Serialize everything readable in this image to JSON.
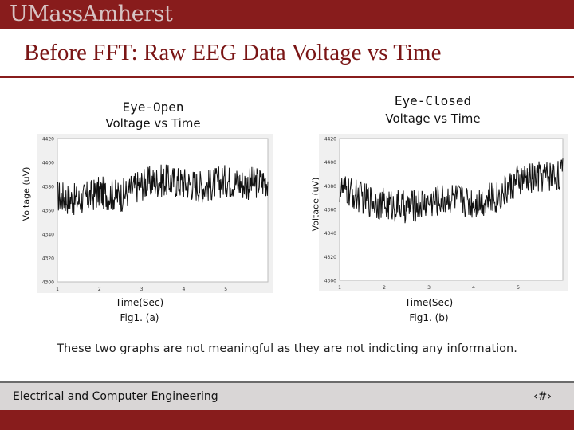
{
  "header": {
    "logo_text": "UMassAmherst",
    "brand_color": "#881c1c"
  },
  "slide": {
    "title": "Before FFT: Raw EEG Data Voltage vs Time",
    "summary": "These two graphs are not meaningful as they are not indicting any information."
  },
  "charts": {
    "left": {
      "title_line1": "Eye-Open",
      "title_line2": "Voltage vs Time",
      "ylabel": "Voltage (uV)",
      "xlabel": "Time(Sec)",
      "caption": "Fig1. (a)"
    },
    "right": {
      "title_line1": "Eye-Closed",
      "title_line2": "Voltage vs Time",
      "ylabel": "Voltage (uV)",
      "xlabel": "Time(Sec)",
      "caption": "Fig1. (b)"
    }
  },
  "chart_data": [
    {
      "type": "line",
      "xlim": [
        1,
        6
      ],
      "ylim": [
        4300,
        4420
      ],
      "xticks": [
        1,
        2,
        3,
        4,
        5
      ],
      "yticks": [
        4300,
        4320,
        4340,
        4360,
        4380,
        4400,
        4420
      ],
      "grid": false,
      "x": [
        1.0,
        1.5,
        2.0,
        2.5,
        3.0,
        3.5,
        4.0,
        4.5,
        5.0,
        5.5,
        6.0
      ],
      "y": [
        4372,
        4368,
        4375,
        4372,
        4382,
        4385,
        4383,
        4380,
        4385,
        4382,
        4385
      ],
      "series_color": "#111111"
    },
    {
      "type": "line",
      "xlim": [
        1,
        6
      ],
      "ylim": [
        4300,
        4420
      ],
      "xticks": [
        1,
        2,
        3,
        4,
        5
      ],
      "yticks": [
        4300,
        4320,
        4340,
        4360,
        4380,
        4400,
        4420
      ],
      "grid": false,
      "x": [
        1.0,
        1.5,
        2.0,
        2.5,
        3.0,
        3.5,
        4.0,
        4.5,
        5.0,
        5.5,
        6.0
      ],
      "y": [
        4377,
        4370,
        4364,
        4362,
        4366,
        4370,
        4366,
        4370,
        4384,
        4388,
        4390
      ],
      "series_color": "#111111"
    }
  ],
  "footer": {
    "department": "Electrical and Computer Engineering",
    "page_number": "‹#›"
  }
}
